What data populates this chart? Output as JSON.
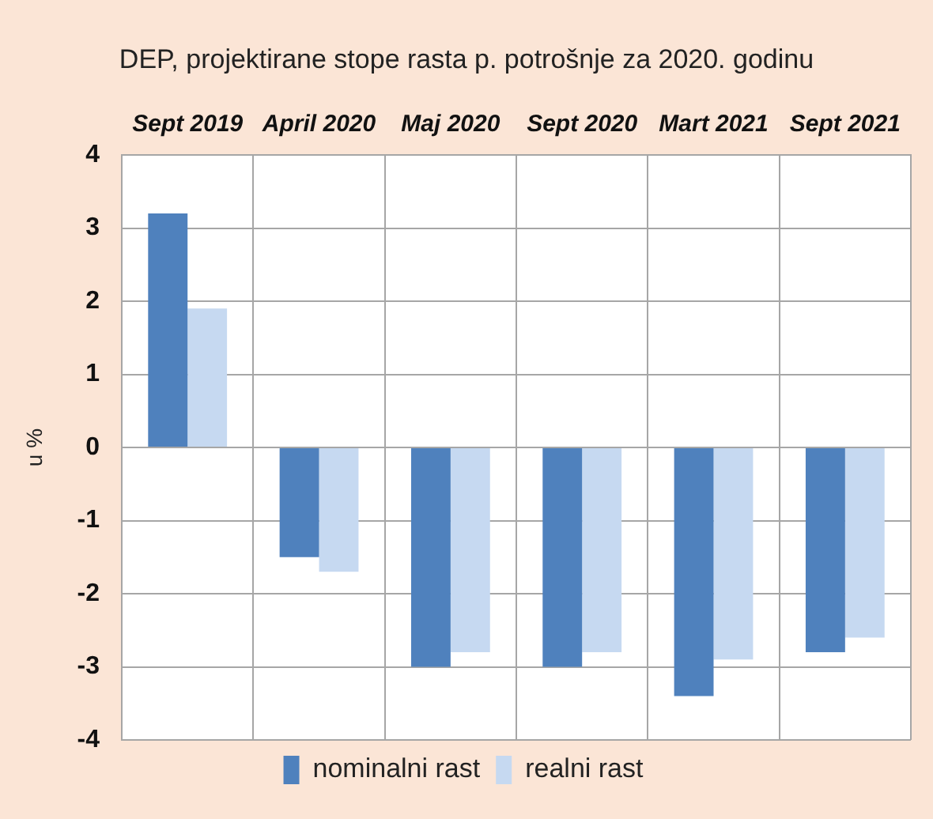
{
  "chart_data": {
    "type": "bar",
    "title": "DEP, projektirane stope rasta p. potrošnje za 2020. godinu",
    "ylabel": "u %",
    "categories": [
      "Sept 2019",
      "April 2020",
      "Maj 2020",
      "Sept 2020",
      "Mart 2021",
      "Sept 2021"
    ],
    "series": [
      {
        "name": "nominalni rast",
        "color": "#4f81bd",
        "values": [
          3.2,
          -1.5,
          -3.0,
          -3.0,
          -3.4,
          -2.8
        ]
      },
      {
        "name": "realni rast",
        "color": "#c6d9f1",
        "values": [
          1.9,
          -1.7,
          -2.8,
          -2.8,
          -2.9,
          -2.6
        ]
      }
    ],
    "ylim": [
      -4,
      4
    ],
    "yticks": [
      -4,
      -3,
      -2,
      -1,
      0,
      1,
      2,
      3,
      4
    ],
    "grid": true,
    "legend": "bottom"
  }
}
